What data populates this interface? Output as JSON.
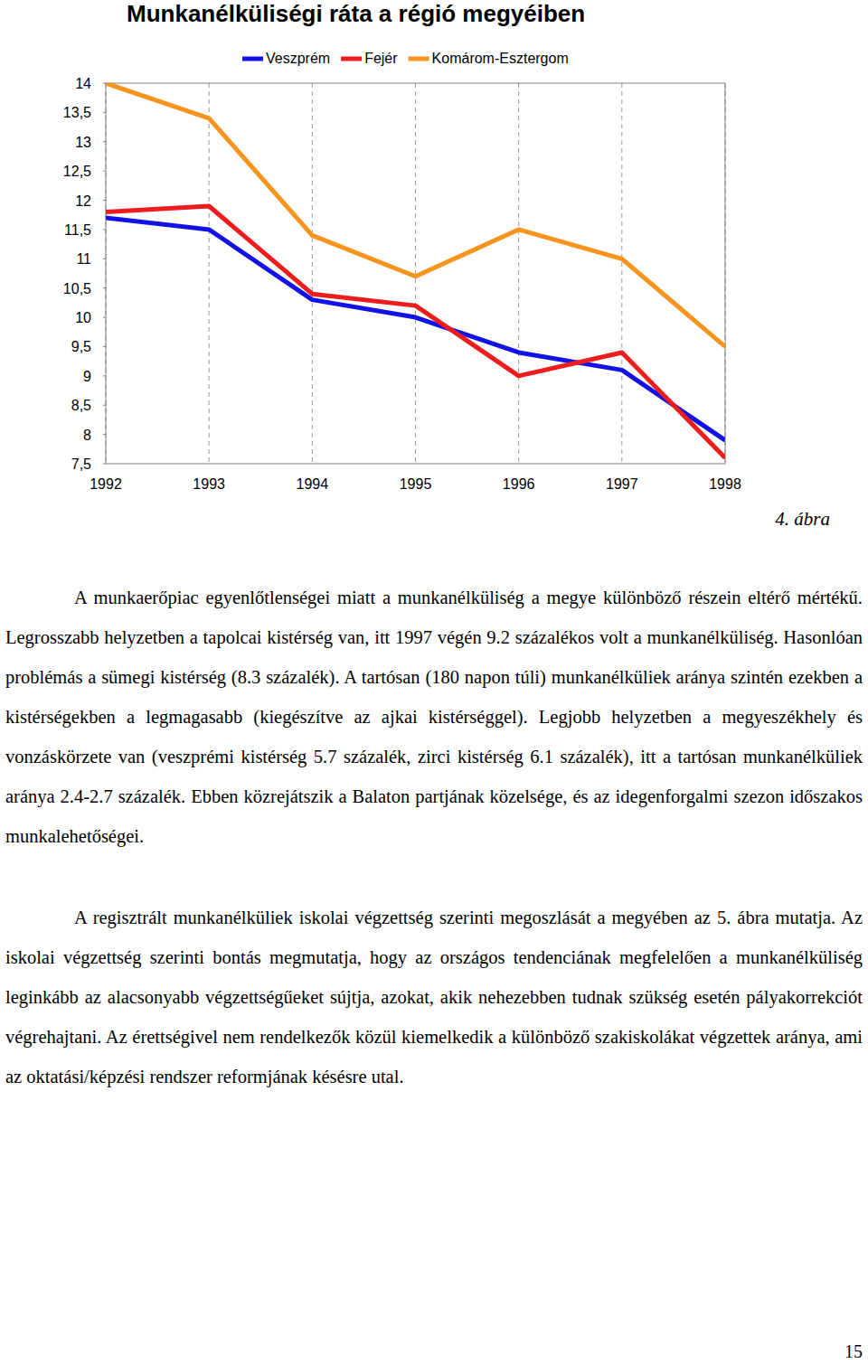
{
  "chart_data": {
    "type": "line",
    "title": "Munkanélküliségi ráta a régió megyéiben",
    "categories": [
      "1992",
      "1993",
      "1994",
      "1995",
      "1996",
      "1997",
      "1998"
    ],
    "series": [
      {
        "name": "Veszprém",
        "color": "#1212e6",
        "values": [
          11.7,
          11.5,
          10.3,
          10.0,
          9.4,
          9.1,
          7.9
        ]
      },
      {
        "name": "Fejér",
        "color": "#ee1c1c",
        "values": [
          11.8,
          11.9,
          10.4,
          10.2,
          9.0,
          9.4,
          7.6
        ]
      },
      {
        "name": "Komárom-Esztergom",
        "color": "#f7941d",
        "values": [
          14.0,
          13.4,
          11.4,
          10.7,
          11.5,
          11.0,
          9.5
        ]
      }
    ],
    "ylim": [
      7.5,
      14
    ],
    "yticks": [
      {
        "value": 7.5,
        "label": "7,5"
      },
      8,
      {
        "value": 8.5,
        "label": "8,5"
      },
      9,
      {
        "value": 9.5,
        "label": "9,5"
      },
      10,
      {
        "value": 10.5,
        "label": "10,5"
      },
      11,
      {
        "value": 11.5,
        "label": "11,5"
      },
      12,
      {
        "value": 12.5,
        "label": "12,5"
      },
      13,
      {
        "value": 13.5,
        "label": "13,5"
      },
      14
    ],
    "grid": true,
    "legend": "top",
    "line_style": "solid"
  },
  "document": {
    "caption": "4. ábra",
    "paragraphs": [
      "A munkaerőpiac egyenlőtlenségei miatt a munkanélküliség a megye különböző részein eltérő mértékű. Legrosszabb helyzetben a tapolcai kistérség van, itt 1997 végén 9.2 százalékos volt a munkanélküliség. Hasonlóan problémás a sümegi kistérség (8.3 százalék). A tartósan (180 napon túli) munkanélküliek aránya szintén ezekben a kistérségekben a legmagasabb (kiegészítve az ajkai kistérséggel). Legjobb helyzetben a megyeszékhely és vonzáskörzete van (veszprémi kistérség 5.7 százalék, zirci kistérség 6.1 százalék), itt a tartósan munkanélküliek aránya 2.4-2.7 százalék. Ebben közrejátszik a Balaton partjának közelsége, és az idegenforgalmi szezon időszakos munkalehetőségei.",
      "A regisztrált munkanélküliek iskolai végzettség szerinti megoszlását a megyében az 5. ábra mutatja. Az iskolai végzettség szerinti bontás megmutatja, hogy az országos tendenciának megfelelően a munkanélküliség leginkább az alacsonyabb végzettségűeket sújtja, azokat, akik nehezebben tudnak szükség esetén pályakorrekciót végrehajtani. Az érettségivel nem rendelkezők közül kiemelkedik a különböző szakiskolákat végzettek aránya, ami az oktatási/képzési rendszer reformjának késésre utal."
    ],
    "page_number": "15"
  }
}
